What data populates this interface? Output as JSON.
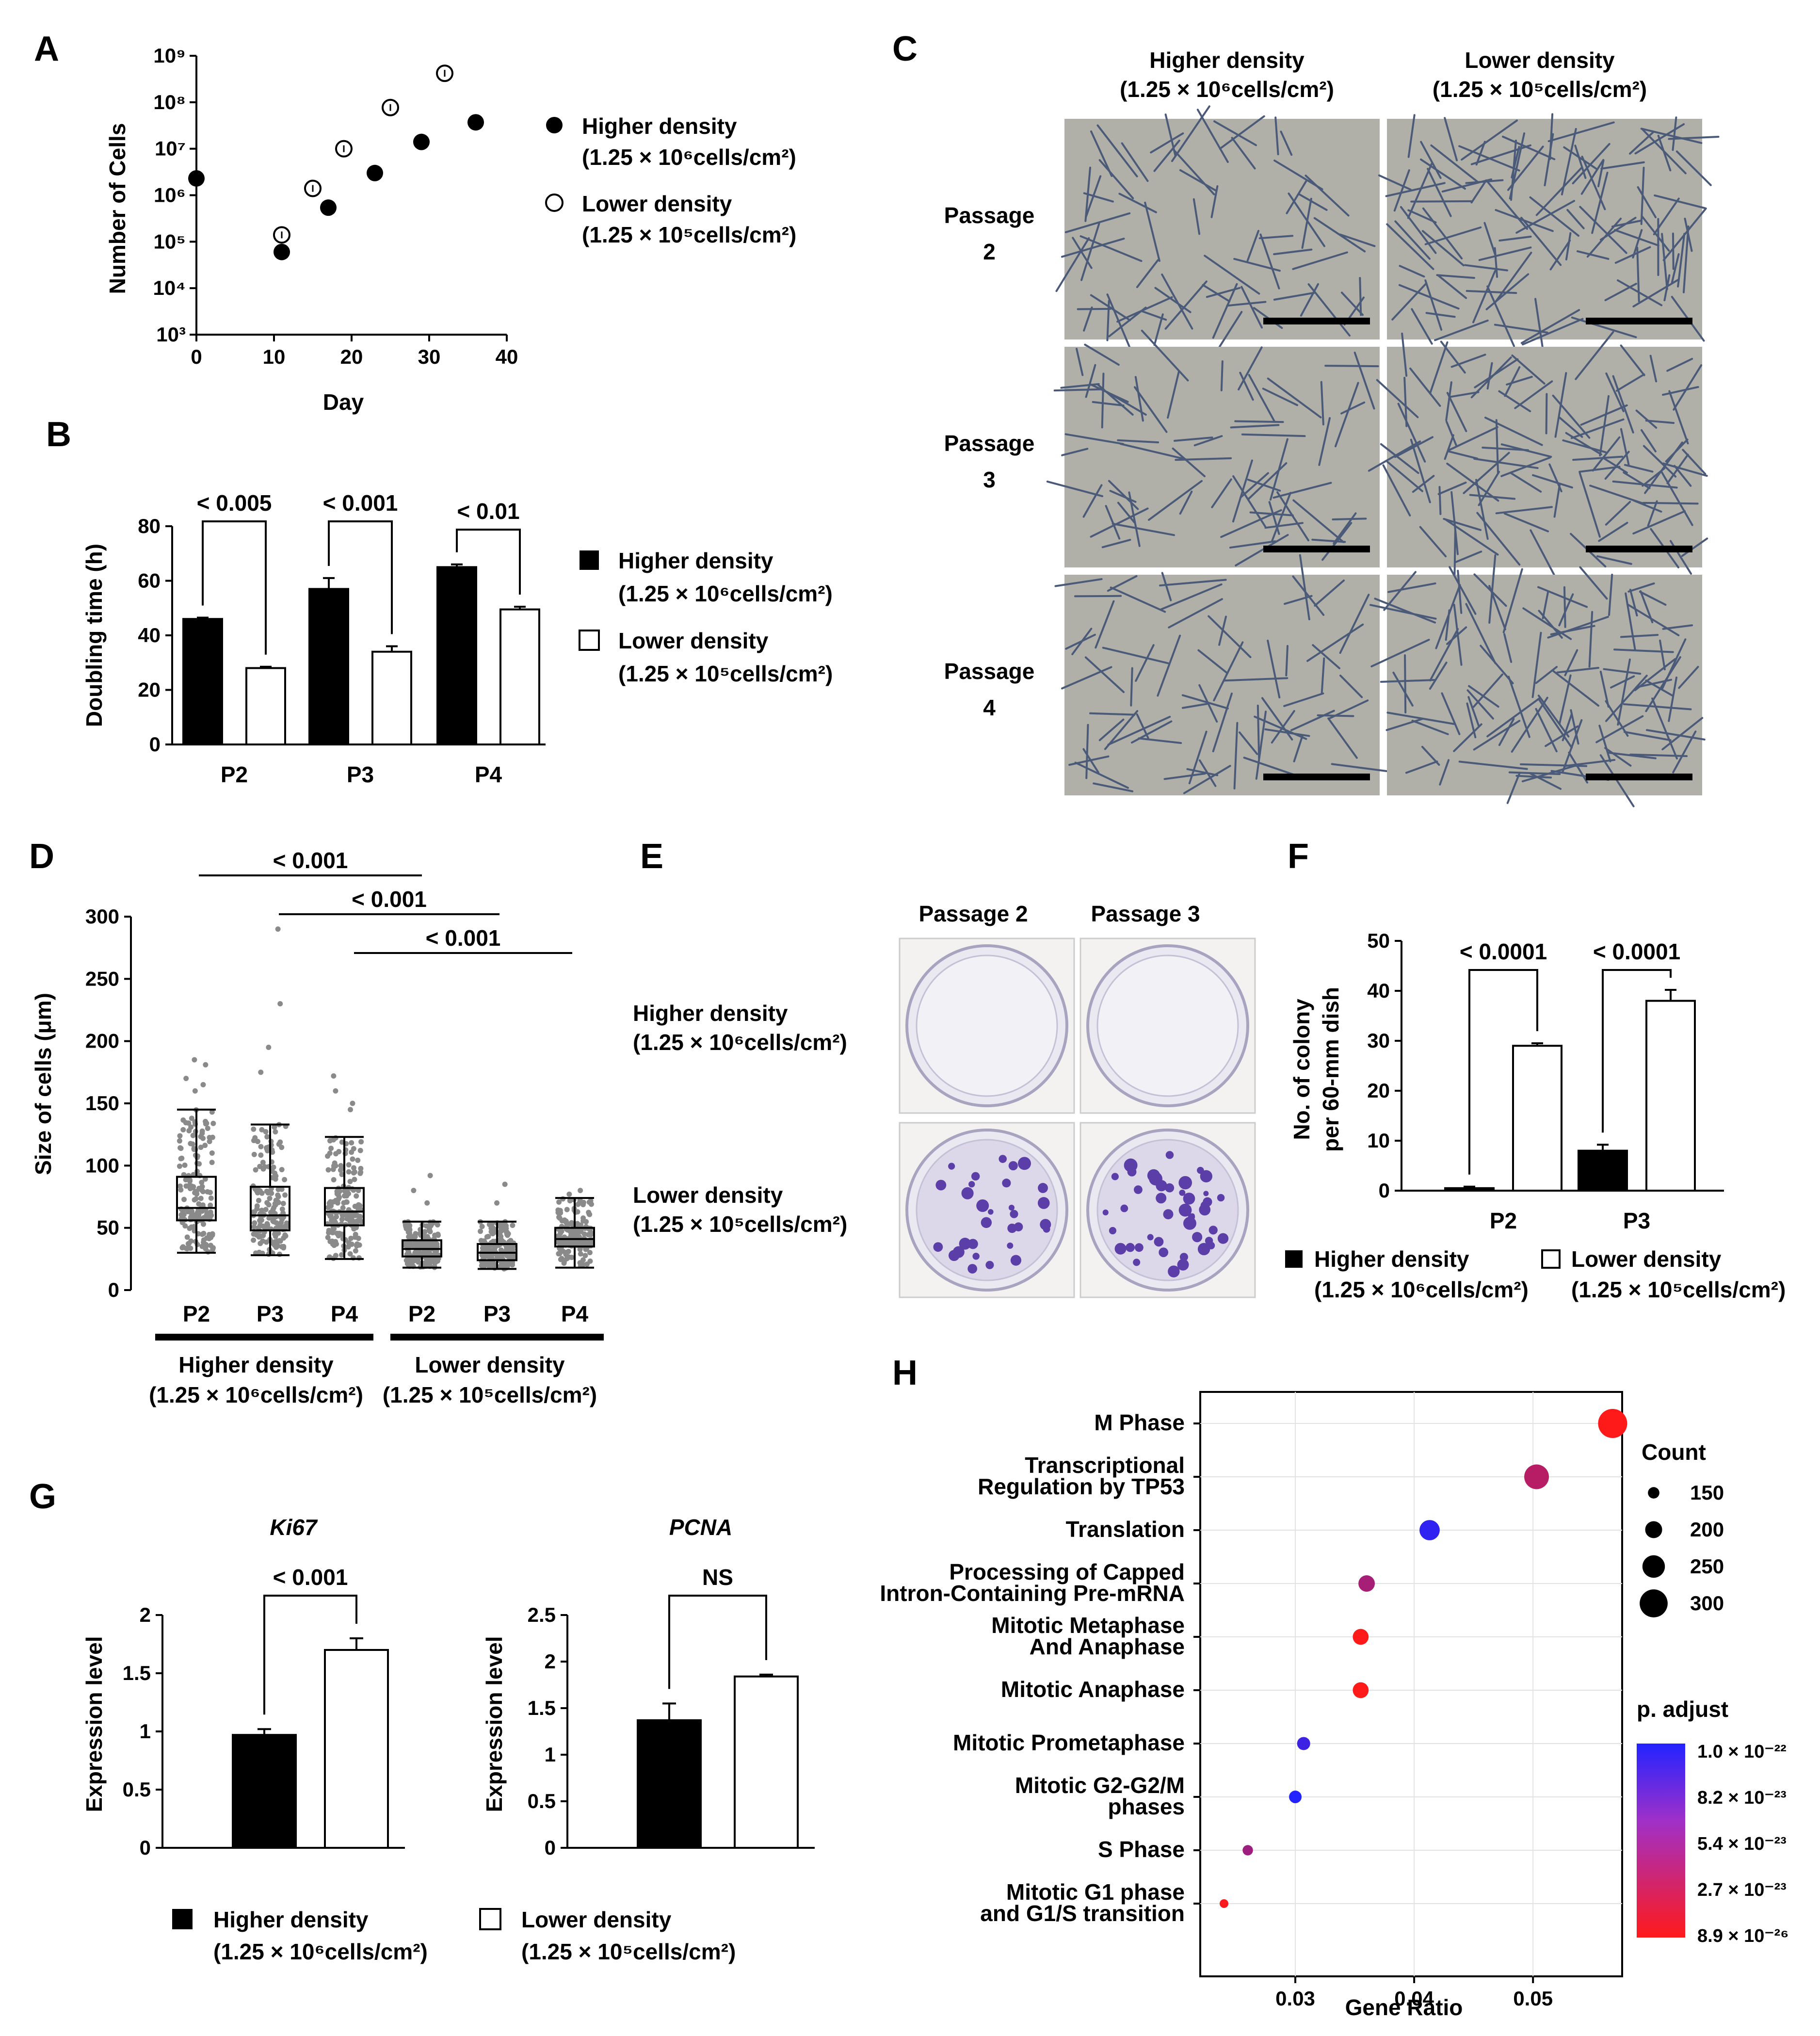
{
  "density_labels": {
    "higher": "Higher density",
    "lower": "Lower density",
    "higher_sub": "(1.25 × 10⁶cells/cm²)",
    "lower_sub": "(1.25 × 10⁵cells/cm²)"
  },
  "panels": {
    "A": {
      "letter": "A",
      "xlabel": "Day",
      "ylabel": "Number of Cells"
    },
    "B": {
      "letter": "B",
      "ylabel": "Doubling time (h)"
    },
    "C": {
      "letter": "C",
      "row_labels": [
        "Passage 2",
        "Passage 3",
        "Passage 4"
      ]
    },
    "D": {
      "letter": "D",
      "ylabel": "Size of cells (μm)"
    },
    "E": {
      "letter": "E",
      "col_labels": [
        "Passage 2",
        "Passage 3"
      ]
    },
    "F": {
      "letter": "F",
      "ylabel_line1": "No. of colony",
      "ylabel_line2": "per 60-mm dish"
    },
    "G": {
      "letter": "G",
      "ylabel": "Expression level"
    },
    "H": {
      "letter": "H",
      "xlabel": "Gene Ratio",
      "size_legend_title": "Count",
      "color_legend_title": "p. adjust"
    }
  },
  "chart_data": [
    {
      "id": "A",
      "type": "scatter",
      "title": "",
      "xlabel": "Day",
      "ylabel": "Number of Cells",
      "y_scale": "log",
      "xlim": [
        0,
        40
      ],
      "ylim": [
        1000,
        1000000000
      ],
      "x_ticks": [
        "0",
        "10",
        "20",
        "30",
        "40"
      ],
      "y_ticks": [
        "10³",
        "10⁴",
        "10⁵",
        "10⁶",
        "10⁷",
        "10⁸",
        "10⁹"
      ],
      "series": [
        {
          "name": "Higher density",
          "sub": "(1.25 × 10⁶cells/cm²)",
          "marker": "filled",
          "x": [
            0,
            11,
            17,
            23,
            29,
            36
          ],
          "y": [
            2300000,
            60000,
            540000,
            3000000,
            14000000,
            37000000
          ]
        },
        {
          "name": "Lower density",
          "sub": "(1.25 × 10⁵cells/cm²)",
          "marker": "open",
          "x": [
            11,
            15,
            19,
            25,
            32
          ],
          "y": [
            140000,
            1400000,
            10000000,
            77000000,
            420000000
          ]
        }
      ]
    },
    {
      "id": "B",
      "type": "bar",
      "ylabel": "Doubling time (h)",
      "ylim": [
        0,
        80
      ],
      "y_ticks": [
        "0",
        "20",
        "40",
        "60",
        "80"
      ],
      "categories": [
        "P2",
        "P3",
        "P4"
      ],
      "series": [
        {
          "name": "Higher density",
          "sub": "(1.25 × 10⁶cells/cm²)",
          "values": [
            46,
            57,
            65
          ],
          "errors": [
            0.5,
            4,
            1
          ]
        },
        {
          "name": "Lower density",
          "sub": "(1.25 × 10⁵cells/cm²)",
          "values": [
            28,
            34,
            49.5
          ],
          "errors": [
            0.5,
            2,
            1
          ]
        }
      ],
      "annotations": [
        "< 0.005",
        "< 0.001",
        "< 0.01"
      ]
    },
    {
      "id": "D",
      "type": "box",
      "ylabel": "Size of cells (μm)",
      "ylim": [
        0,
        300
      ],
      "y_ticks": [
        "0",
        "50",
        "100",
        "150",
        "200",
        "250",
        "300"
      ],
      "categories": [
        "P2",
        "P3",
        "P4",
        "P2",
        "P3",
        "P4"
      ],
      "groups": [
        {
          "name": "Higher density",
          "sub": "(1.25 × 10⁶cells/cm²)"
        },
        {
          "name": "Lower density",
          "sub": "(1.25 × 10⁵cells/cm²)"
        }
      ],
      "boxes": [
        {
          "whisker_low": 30,
          "q1": 56,
          "median": 66,
          "q3": 91,
          "whisker_high": 145
        },
        {
          "whisker_low": 28,
          "q1": 48,
          "median": 60,
          "q3": 83,
          "whisker_high": 133
        },
        {
          "whisker_low": 25,
          "q1": 52,
          "median": 63,
          "q3": 82,
          "whisker_high": 123
        },
        {
          "whisker_low": 18,
          "q1": 27,
          "median": 33,
          "q3": 40,
          "whisker_high": 55
        },
        {
          "whisker_low": 17,
          "q1": 24,
          "median": 30,
          "q3": 37,
          "whisker_high": 55
        },
        {
          "whisker_low": 18,
          "q1": 35,
          "median": 41,
          "q3": 50,
          "whisker_high": 74
        }
      ],
      "outliers": [
        [
          185,
          181,
          170,
          165,
          160
        ],
        [
          290,
          230,
          195,
          175
        ],
        [
          172,
          160,
          150,
          145
        ],
        [
          92,
          80,
          70
        ],
        [
          85,
          70
        ],
        [
          80,
          77
        ]
      ],
      "annotations": [
        "< 0.001",
        "< 0.001",
        "< 0.001"
      ]
    },
    {
      "id": "F",
      "type": "bar",
      "ylabel": "No. of colony per 60-mm dish",
      "ylim": [
        0,
        50
      ],
      "y_ticks": [
        "0",
        "10",
        "20",
        "30",
        "40",
        "50"
      ],
      "categories": [
        "P2",
        "P3"
      ],
      "series": [
        {
          "name": "Higher density",
          "sub": "(1.25 × 10⁶cells/cm²)",
          "values": [
            0.5,
            8
          ],
          "errors": [
            0.3,
            1.2
          ]
        },
        {
          "name": "Lower density",
          "sub": "(1.25 × 10⁵cells/cm²)",
          "values": [
            29,
            38
          ],
          "errors": [
            0.5,
            2.2
          ]
        }
      ],
      "annotations": [
        "< 0.0001",
        "< 0.0001"
      ]
    },
    {
      "id": "G1",
      "type": "bar",
      "title": "Ki67",
      "ylabel": "Expression level",
      "ylim": [
        0,
        2
      ],
      "y_ticks": [
        "0",
        "0.5",
        "1",
        "1.5",
        "2"
      ],
      "series": [
        {
          "name": "Higher density",
          "values": [
            0.97
          ],
          "errors": [
            0.05
          ]
        },
        {
          "name": "Lower density",
          "values": [
            1.7
          ],
          "errors": [
            0.1
          ]
        }
      ],
      "annotations": [
        "< 0.001"
      ]
    },
    {
      "id": "G2",
      "type": "bar",
      "title": "PCNA",
      "ylabel": "Expression level",
      "ylim": [
        0,
        2.5
      ],
      "y_ticks": [
        "0",
        "0.5",
        "1",
        "1.5",
        "2",
        "2.5"
      ],
      "series": [
        {
          "name": "Higher density",
          "values": [
            1.37
          ],
          "errors": [
            0.18
          ]
        },
        {
          "name": "Lower density",
          "values": [
            1.84
          ],
          "errors": [
            0.02
          ]
        }
      ],
      "annotations": [
        "NS"
      ]
    },
    {
      "id": "H",
      "type": "scatter",
      "xlabel": "Gene Ratio",
      "xlim": [
        0.022,
        0.0575
      ],
      "x_ticks": [
        {
          "value": 0.03,
          "label": "0.03"
        },
        {
          "value": 0.04,
          "label": "0.04"
        },
        {
          "value": 0.05,
          "label": "0.05"
        }
      ],
      "terms": [
        {
          "label": [
            "M Phase"
          ],
          "x": 0.0567,
          "count": 310,
          "padj": 8.9e-26
        },
        {
          "label": [
            "Transcriptional",
            "Regulation by TP53"
          ],
          "x": 0.0503,
          "count": 270,
          "padj": 9e-25
        },
        {
          "label": [
            "Translation"
          ],
          "x": 0.0413,
          "count": 230,
          "padj": 6.5e-23
        },
        {
          "label": [
            "Processing of Capped",
            "Intron-Containing Pre-mRNA"
          ],
          "x": 0.036,
          "count": 195,
          "padj": 1.5e-24
        },
        {
          "label": [
            "Mitotic Metaphase",
            "And Anaphase"
          ],
          "x": 0.0355,
          "count": 190,
          "padj": 8.9e-26
        },
        {
          "label": [
            "Mitotic Anaphase"
          ],
          "x": 0.0355,
          "count": 190,
          "padj": 8.9e-26
        },
        {
          "label": [
            "Mitotic Prometaphase"
          ],
          "x": 0.0307,
          "count": 165,
          "padj": 4.3e-23
        },
        {
          "label": [
            "Mitotic G2-G2/M",
            "phases"
          ],
          "x": 0.03,
          "count": 160,
          "padj": 1e-22
        },
        {
          "label": [
            "S Phase"
          ],
          "x": 0.026,
          "count": 140,
          "padj": 2e-24
        },
        {
          "label": [
            "Mitotic G1 phase",
            "and G1/S transition"
          ],
          "x": 0.024,
          "count": 125,
          "padj": 1e-25
        }
      ],
      "size_legend": [
        "150",
        "200",
        "250",
        "300"
      ],
      "color_legend": [
        "1.0 × 10⁻²²",
        "8.2 × 10⁻²³",
        "5.4 × 10⁻²³",
        "2.7 × 10⁻²³",
        "8.9 × 10⁻²⁶"
      ],
      "colors": {
        "low_padj": "#ff1a1a",
        "high_padj": "#2323ff"
      }
    }
  ],
  "micrographs": {
    "bg": "#b0b0a8",
    "cell": "#4a5a78",
    "scale_bar": "#000000"
  },
  "dishes": {
    "bg": "#f3f2f0",
    "colony": "#5b3ea8"
  }
}
